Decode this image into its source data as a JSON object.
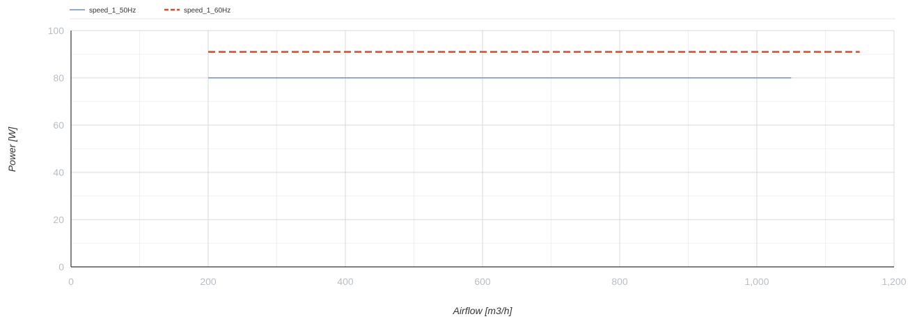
{
  "chart_data": {
    "type": "line",
    "title": "",
    "xlabel": "Airflow [m3/h]",
    "ylabel": "Power [W]",
    "xlim": [
      0,
      1200
    ],
    "ylim": [
      0,
      100
    ],
    "x_ticks": [
      0,
      200,
      400,
      600,
      800,
      1000,
      1200
    ],
    "x_tick_labels": [
      "0",
      "200",
      "400",
      "600",
      "800",
      "1,000",
      "1,200"
    ],
    "y_ticks": [
      0,
      20,
      40,
      60,
      80,
      100
    ],
    "y_tick_labels": [
      "0",
      "20",
      "40",
      "60",
      "80",
      "100"
    ],
    "grid": true,
    "legend_position": "top-left",
    "series": [
      {
        "name": "speed_1_50Hz",
        "color": "#8ea9e0",
        "dash": "solid",
        "points": [
          [
            200,
            80
          ],
          [
            1050,
            80
          ]
        ]
      },
      {
        "name": "speed_1_60Hz",
        "color": "#e8431f",
        "dash": "dashed",
        "points": [
          [
            200,
            91
          ],
          [
            1150,
            91
          ]
        ]
      }
    ]
  }
}
